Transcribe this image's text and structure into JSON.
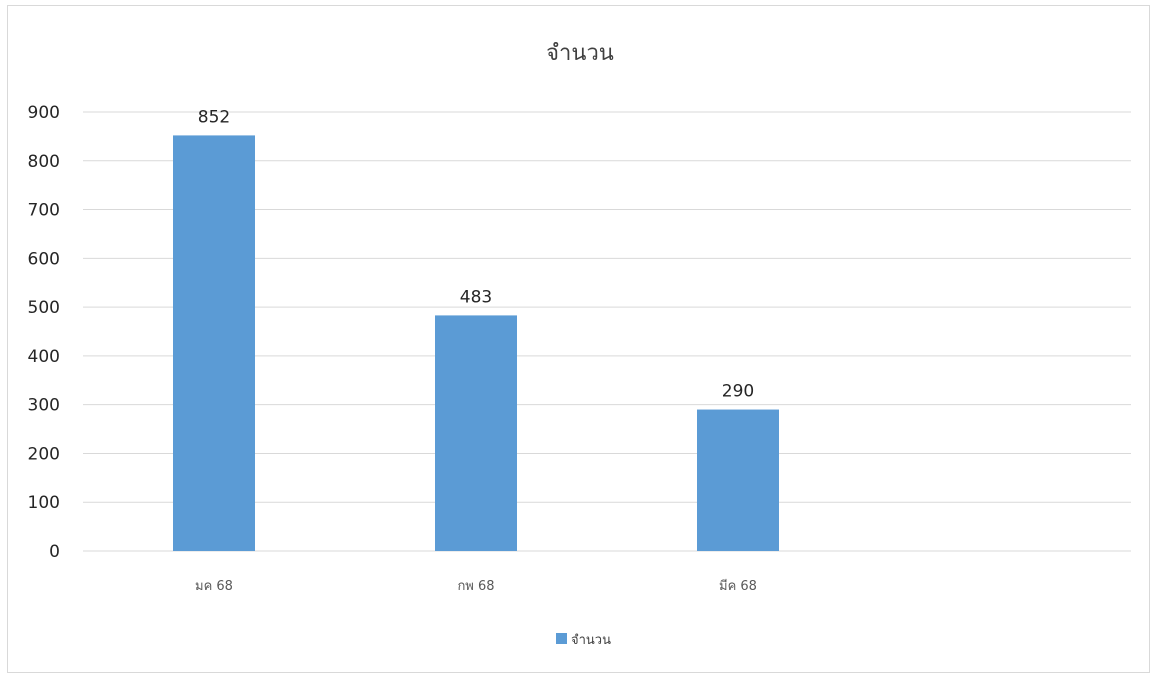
{
  "chart_data": {
    "type": "bar",
    "title": "จำนวน",
    "categories": [
      "มค 68",
      "กพ 68",
      "มีค 68",
      ""
    ],
    "series": [
      {
        "name": "จำนวน",
        "values": [
          852,
          483,
          290,
          null
        ],
        "color": "#5b9bd5"
      }
    ],
    "data_labels": [
      "852",
      "483",
      "290"
    ],
    "y_ticks": [
      "0",
      "100",
      "200",
      "300",
      "400",
      "500",
      "600",
      "700",
      "800",
      "900"
    ],
    "ylim": [
      0,
      900
    ],
    "grid": true,
    "legend": {
      "position": "bottom",
      "entries": [
        "จำนวน"
      ]
    },
    "colors": {
      "bar": "#5b9bd5",
      "grid": "#d9d9d9"
    }
  }
}
